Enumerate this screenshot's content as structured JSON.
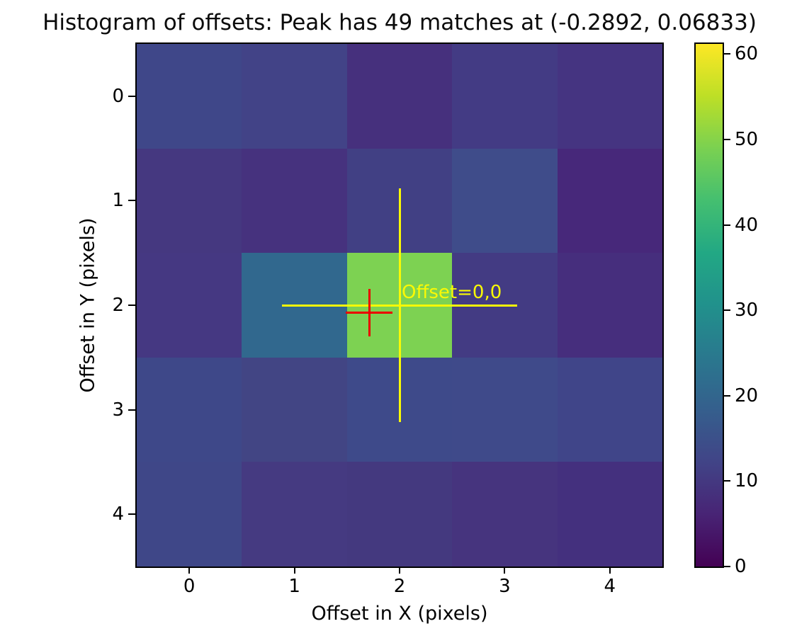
{
  "chart_data": {
    "type": "heatmap",
    "title": "Histogram of offsets: Peak has 49 matches at (-0.2892, 0.06833)",
    "xlabel": "Offset in X (pixels)",
    "ylabel": "Offset in Y (pixels)",
    "x_ticks": [
      "0",
      "1",
      "2",
      "3",
      "4"
    ],
    "y_ticks": [
      "0",
      "1",
      "2",
      "3",
      "4"
    ],
    "x_range": [
      -0.5,
      4.5
    ],
    "y_range": [
      -0.5,
      4.5
    ],
    "grid": false,
    "peak_matches": 49,
    "peak_offset_x": -0.2892,
    "peak_offset_y": 0.06833,
    "values": [
      [
        14,
        13,
        9,
        12,
        10
      ],
      [
        11,
        10,
        13,
        15,
        8
      ],
      [
        11,
        22,
        49,
        12,
        9
      ],
      [
        15,
        13,
        15,
        15,
        14
      ],
      [
        14,
        11,
        11,
        10,
        10
      ]
    ],
    "cell_colors": [
      [
        "#3f4789",
        "#424387",
        "#46307d",
        "#433b84",
        "#453481"
      ],
      [
        "#453880",
        "#46327e",
        "#414084",
        "#3f4c8a",
        "#47287a"
      ],
      [
        "#453882",
        "#31688e",
        "#7dd252",
        "#433b83",
        "#462e7d"
      ],
      [
        "#3e4889",
        "#424584",
        "#3e4a8a",
        "#3f4a8a",
        "#404589"
      ],
      [
        "#3f4788",
        "#453a81",
        "#44397f",
        "#46347e",
        "#44307e"
      ]
    ],
    "colorbar": {
      "vmin": 0,
      "vmax": 61.2,
      "tick_labels": [
        "0",
        "10",
        "20",
        "30",
        "40",
        "50",
        "60"
      ],
      "tick_values": [
        0,
        10,
        20,
        30,
        40,
        50,
        60
      ],
      "colormap": "viridis",
      "stops": [
        "#440154",
        "#482475",
        "#414487",
        "#355f8d",
        "#2a788e",
        "#21918c",
        "#22a884",
        "#44bf70",
        "#7ad151",
        "#bddf26",
        "#fde725"
      ]
    },
    "annotations": [
      {
        "name": "zero-offset-crosshair",
        "x": 2.0,
        "y": 2.0,
        "xerr": 1.12,
        "yerr": 1.12,
        "color": "#f9f905",
        "linewidth": 3,
        "label": "Offset=0,0"
      },
      {
        "name": "peak-marker",
        "x": 1.711,
        "y": 2.068,
        "xerr": 0.22,
        "yerr": 0.227,
        "color": "#ea0000",
        "linewidth": 3,
        "label": ""
      }
    ]
  }
}
